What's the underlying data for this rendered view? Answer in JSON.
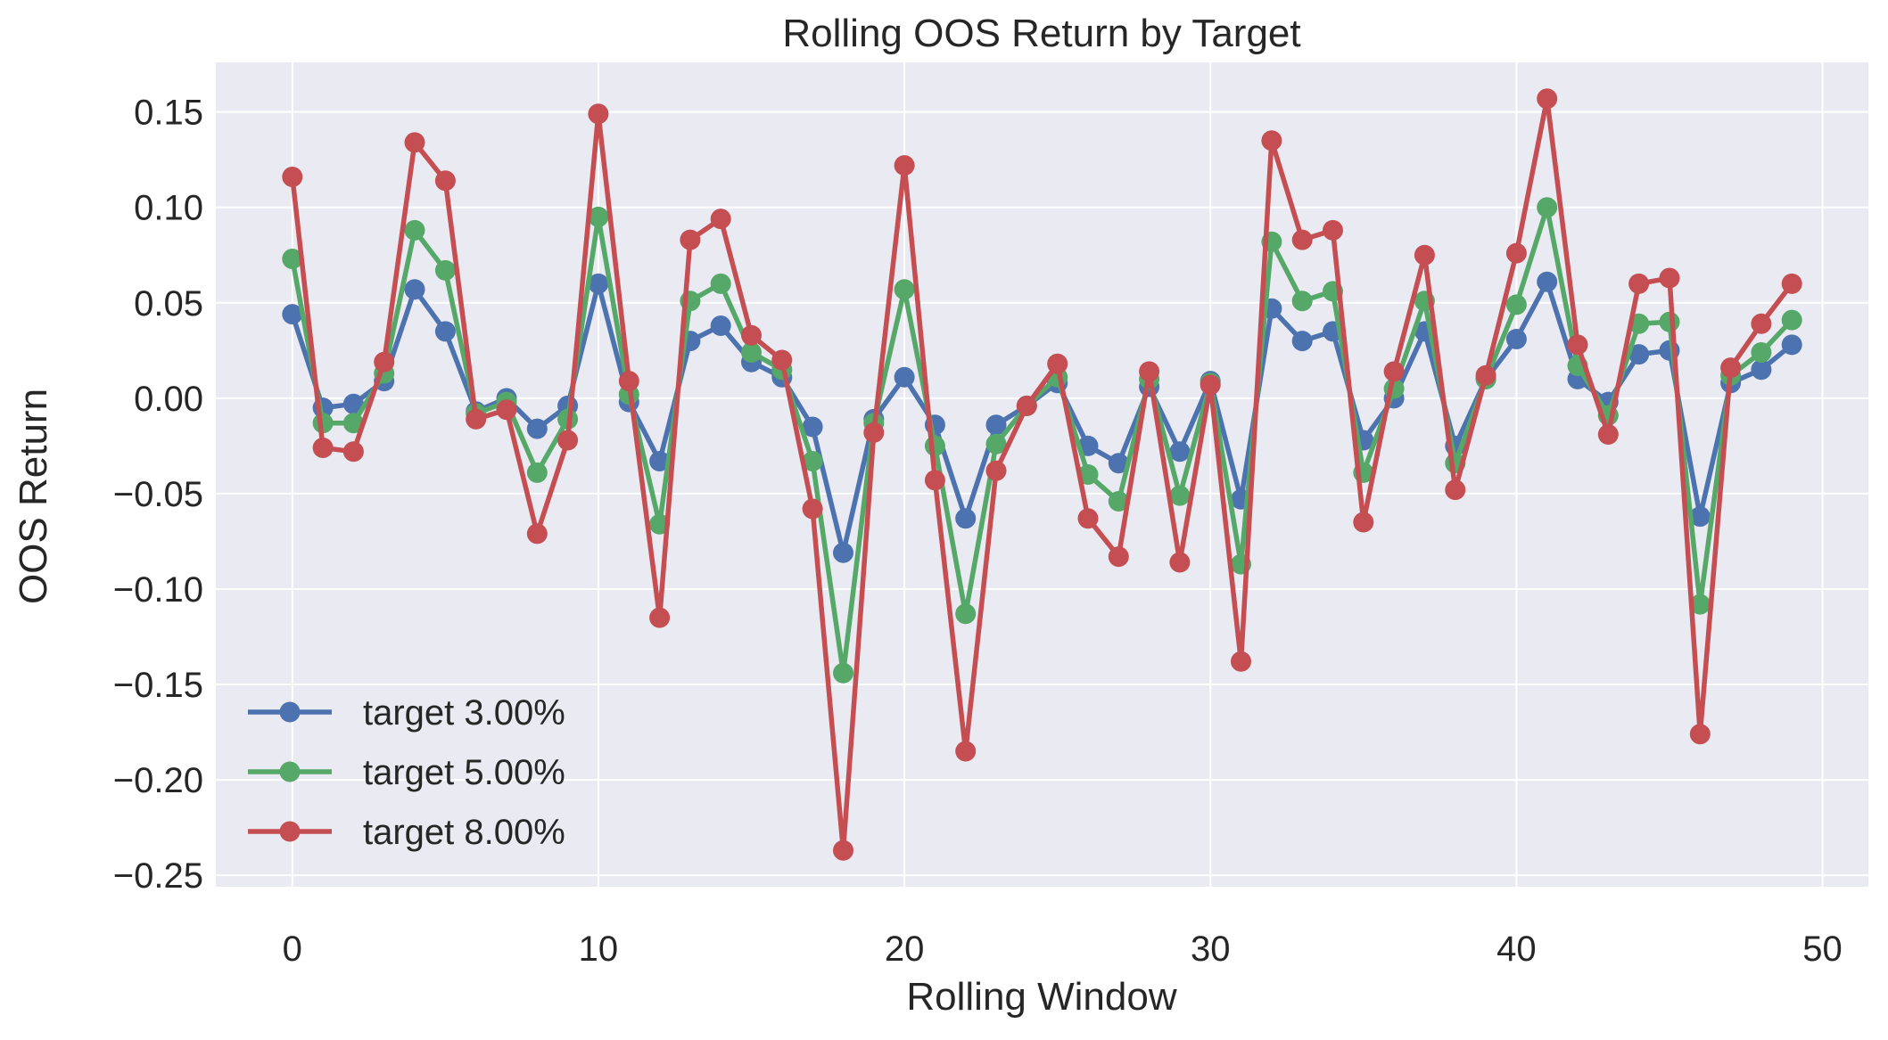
{
  "chart_data": {
    "type": "line",
    "title": "Rolling OOS Return by Target",
    "xlabel": "Rolling Window",
    "ylabel": "OOS Return",
    "xlim": [
      -2.5,
      51.5
    ],
    "ylim": [
      -0.256,
      0.176
    ],
    "xticks": [
      0,
      10,
      20,
      30,
      40,
      50
    ],
    "xtick_labels": [
      "0",
      "10",
      "20",
      "30",
      "40",
      "50"
    ],
    "yticks": [
      0.15,
      0.1,
      0.05,
      0.0,
      -0.05,
      -0.1,
      -0.15,
      -0.2,
      -0.25
    ],
    "ytick_labels": [
      "0.15",
      "0.10",
      "0.05",
      "0.00",
      "−0.05",
      "−0.10",
      "−0.15",
      "−0.20",
      "−0.25"
    ],
    "grid": true,
    "legend_position": "bottom-left",
    "x": [
      0,
      1,
      2,
      3,
      4,
      5,
      6,
      7,
      8,
      9,
      10,
      11,
      12,
      13,
      14,
      15,
      16,
      17,
      18,
      19,
      20,
      21,
      22,
      23,
      24,
      25,
      26,
      27,
      28,
      29,
      30,
      31,
      32,
      33,
      34,
      35,
      36,
      37,
      38,
      39,
      40,
      41,
      42,
      43,
      44,
      45,
      46,
      47,
      48,
      49
    ],
    "series": [
      {
        "name": "target 3.00%",
        "color": "#4c72b0",
        "values": [
          0.044,
          -0.005,
          -0.003,
          0.009,
          0.057,
          0.035,
          -0.007,
          0.0,
          -0.016,
          -0.004,
          0.06,
          -0.002,
          -0.033,
          0.03,
          0.038,
          0.019,
          0.011,
          -0.015,
          -0.081,
          -0.011,
          0.011,
          -0.014,
          -0.063,
          -0.014,
          -0.004,
          0.008,
          -0.025,
          -0.034,
          0.006,
          -0.028,
          0.009,
          -0.053,
          0.047,
          0.03,
          0.035,
          -0.022,
          0.0,
          0.035,
          -0.025,
          0.01,
          0.031,
          0.061,
          0.01,
          -0.002,
          0.023,
          0.025,
          -0.062,
          0.008,
          0.015,
          0.028
        ]
      },
      {
        "name": "target 5.00%",
        "color": "#55a868",
        "values": [
          0.073,
          -0.013,
          -0.013,
          0.013,
          0.088,
          0.067,
          -0.008,
          -0.002,
          -0.039,
          -0.011,
          0.095,
          0.002,
          -0.066,
          0.051,
          0.06,
          0.024,
          0.015,
          -0.033,
          -0.144,
          -0.013,
          0.057,
          -0.025,
          -0.113,
          -0.024,
          -0.004,
          0.011,
          -0.04,
          -0.054,
          0.01,
          -0.051,
          0.008,
          -0.087,
          0.082,
          0.051,
          0.056,
          -0.039,
          0.005,
          0.051,
          -0.034,
          0.01,
          0.049,
          0.1,
          0.017,
          -0.009,
          0.039,
          0.04,
          -0.108,
          0.012,
          0.024,
          0.041
        ]
      },
      {
        "name": "target 8.00%",
        "color": "#c44e52",
        "values": [
          0.116,
          -0.026,
          -0.028,
          0.019,
          0.134,
          0.114,
          -0.011,
          -0.006,
          -0.071,
          -0.022,
          0.149,
          0.009,
          -0.115,
          0.083,
          0.094,
          0.033,
          0.02,
          -0.058,
          -0.237,
          -0.018,
          0.122,
          -0.043,
          -0.185,
          -0.038,
          -0.004,
          0.018,
          -0.063,
          -0.083,
          0.014,
          -0.086,
          0.007,
          -0.138,
          0.135,
          0.083,
          0.088,
          -0.065,
          0.014,
          0.075,
          -0.048,
          0.012,
          0.076,
          0.157,
          0.028,
          -0.019,
          0.06,
          0.063,
          -0.176,
          0.016,
          0.039,
          0.06
        ]
      }
    ]
  }
}
